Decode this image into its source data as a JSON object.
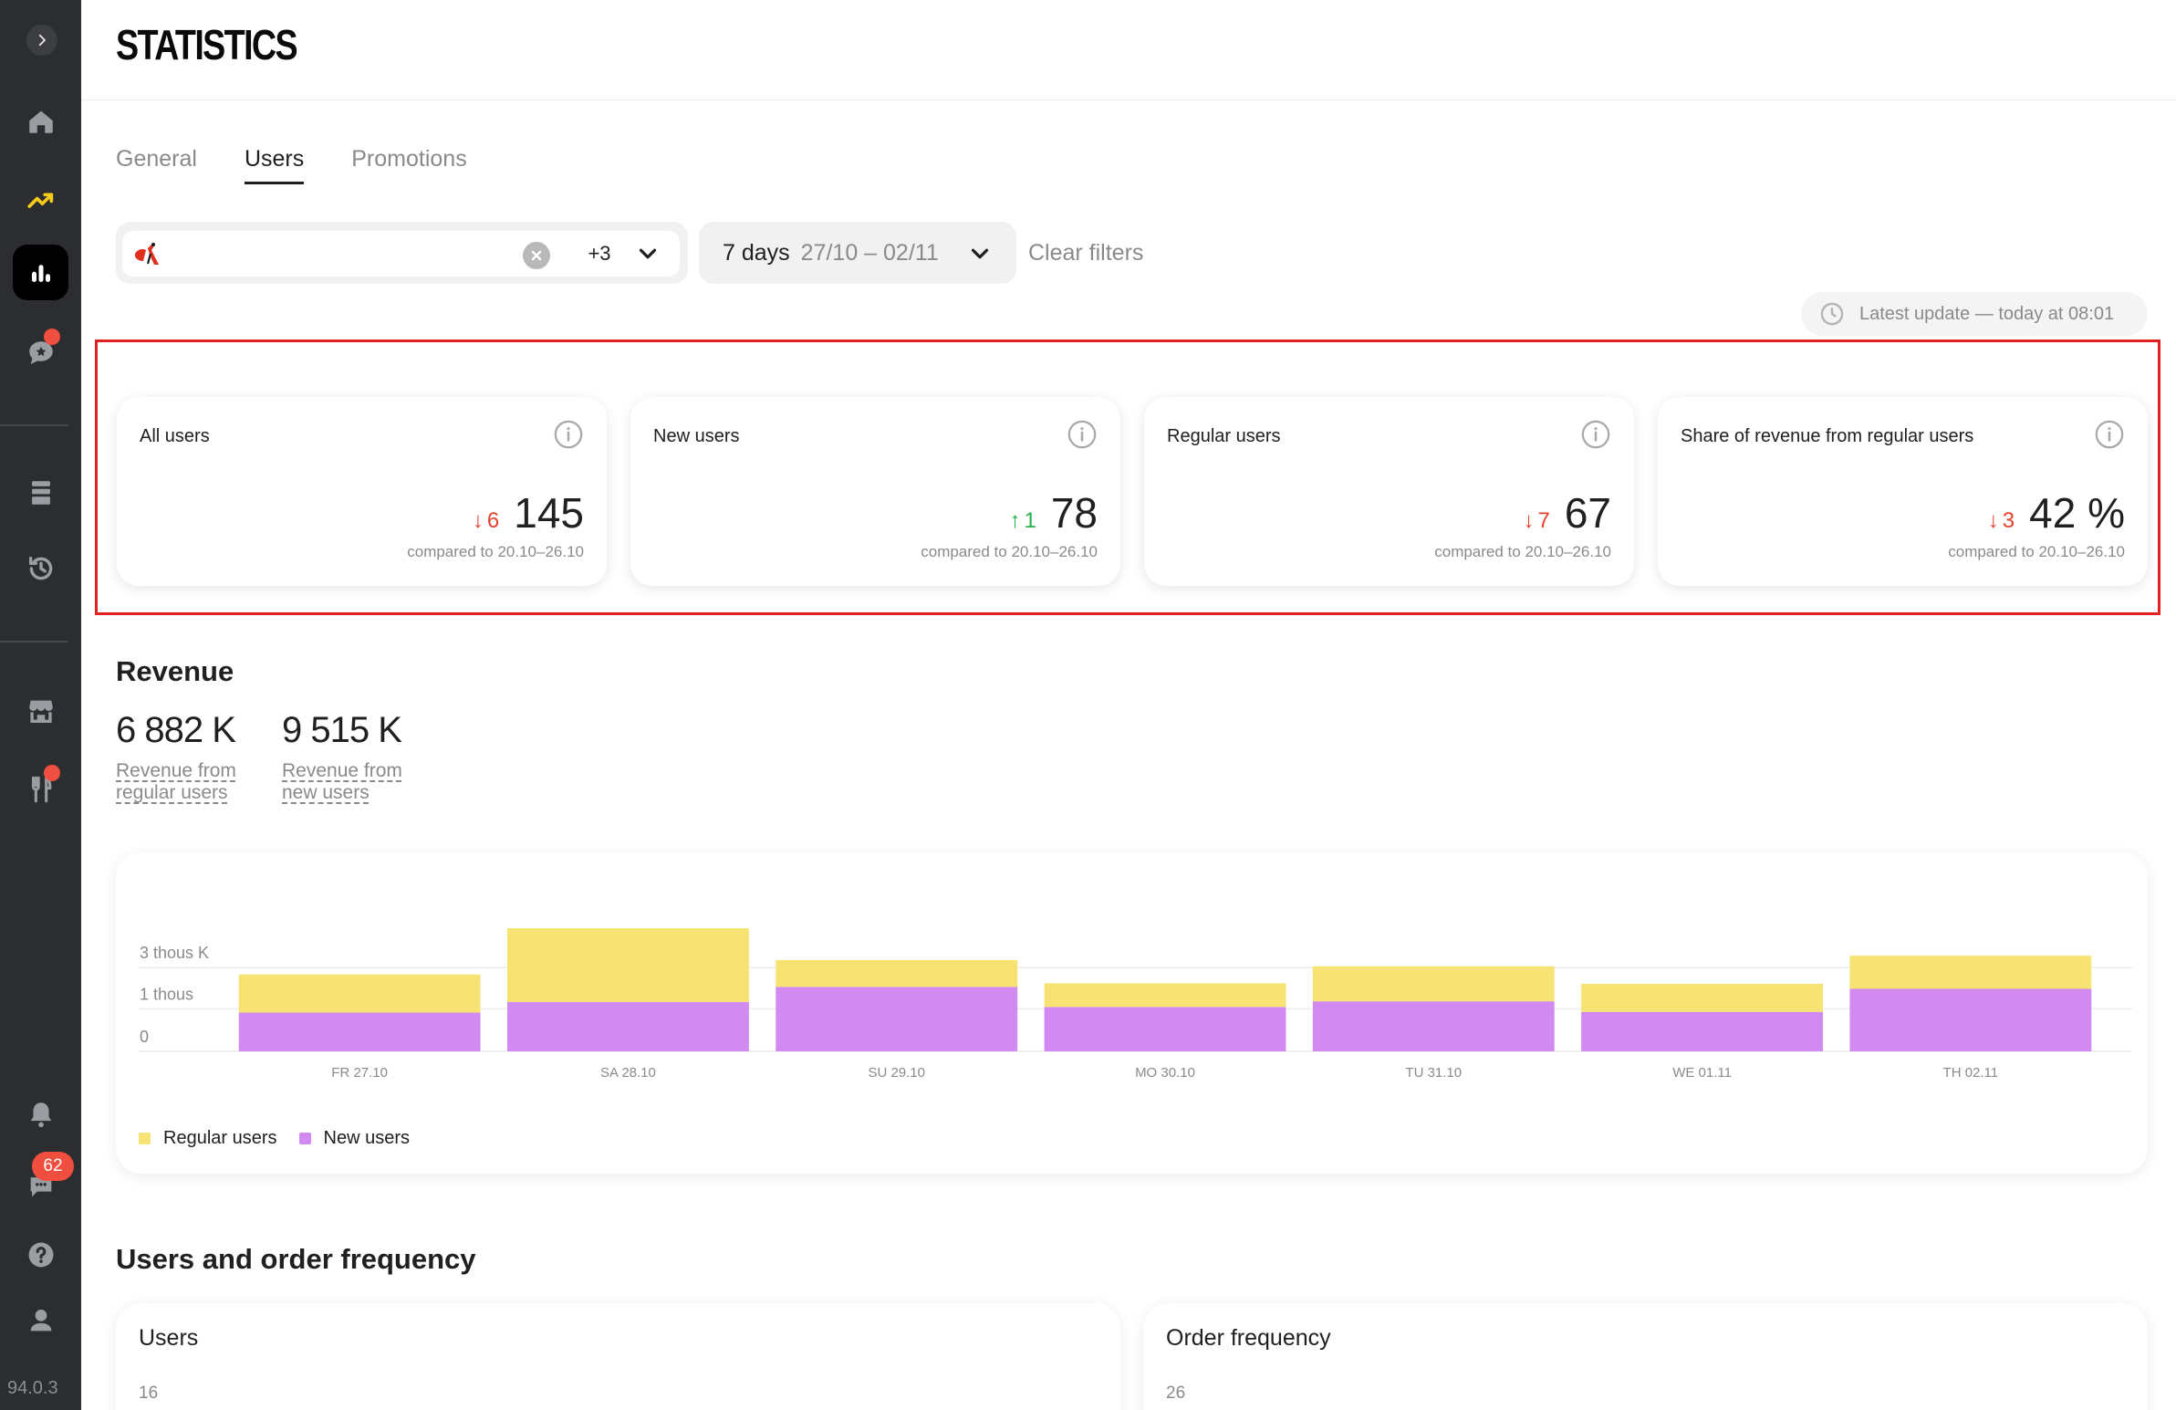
{
  "sidebar": {
    "version": "94.0.3",
    "chat_count": "62",
    "items": [
      {
        "icon": "chevron-right-icon"
      },
      {
        "icon": "home-icon"
      },
      {
        "icon": "trending-up-icon"
      },
      {
        "icon": "bar-chart-icon",
        "active": true
      },
      {
        "icon": "reviews-icon"
      },
      {
        "icon": "menu-book-icon"
      },
      {
        "icon": "history-icon"
      },
      {
        "icon": "store-icon"
      },
      {
        "icon": "restaurant-icon"
      },
      {
        "icon": "bell-icon"
      },
      {
        "icon": "chat-icon"
      },
      {
        "icon": "help-icon"
      },
      {
        "icon": "support-icon"
      }
    ]
  },
  "header": {
    "title": "STATISTICS"
  },
  "tabs": [
    {
      "label": "General"
    },
    {
      "label": "Users"
    },
    {
      "label": "Promotions"
    }
  ],
  "filters": {
    "restaurant_more": "+3",
    "period_days": "7 days",
    "period_range": "27/10 – 02/11",
    "clear_label": "Clear filters"
  },
  "latest_update": "Latest update — today at 08:01",
  "kpis": [
    {
      "label": "All users",
      "delta_dir": "down",
      "delta": "6",
      "value": "145",
      "compare": "compared to 20.10–26.10"
    },
    {
      "label": "New users",
      "delta_dir": "up",
      "delta": "1",
      "value": "78",
      "compare": "compared to 20.10–26.10"
    },
    {
      "label": "Regular users",
      "delta_dir": "down",
      "delta": "7",
      "value": "67",
      "compare": "compared to 20.10–26.10"
    },
    {
      "label": "Share of revenue from regular users",
      "delta_dir": "down",
      "delta": "3",
      "value": "42 %",
      "compare": "compared to 20.10–26.10"
    }
  ],
  "revenue": {
    "title": "Revenue",
    "stats": [
      {
        "value": "6 882 K",
        "label": "Revenue from regular users"
      },
      {
        "value": "9 515 K",
        "label": "Revenue from new users"
      }
    ]
  },
  "colors": {
    "regular": "#f7e274",
    "new": "#d08af2",
    "down": "#e5412d",
    "up": "#22b14c"
  },
  "chart_data": {
    "type": "bar",
    "stacked": true,
    "categories": [
      "FR 27.10",
      "SA 28.10",
      "SU 29.10",
      "MO 30.10",
      "TU 31.10",
      "WE 01.11",
      "TH 02.11"
    ],
    "y_ticks": [
      "0",
      "1 thous",
      "3 thous K"
    ],
    "ylim": [
      0,
      2000
    ],
    "series": [
      {
        "name": "Regular users",
        "values": [
          610,
          1180,
          430,
          380,
          560,
          450,
          530
        ]
      },
      {
        "name": "New users",
        "values": [
          620,
          790,
          1030,
          710,
          800,
          630,
          1000
        ]
      }
    ],
    "legend_position": "bottom-left",
    "grid": true
  },
  "users_order": {
    "title": "Users and order frequency",
    "users_card": {
      "title": "Users",
      "tick": "16"
    },
    "frequency_card": {
      "title": "Order frequency",
      "tick": "26"
    }
  }
}
